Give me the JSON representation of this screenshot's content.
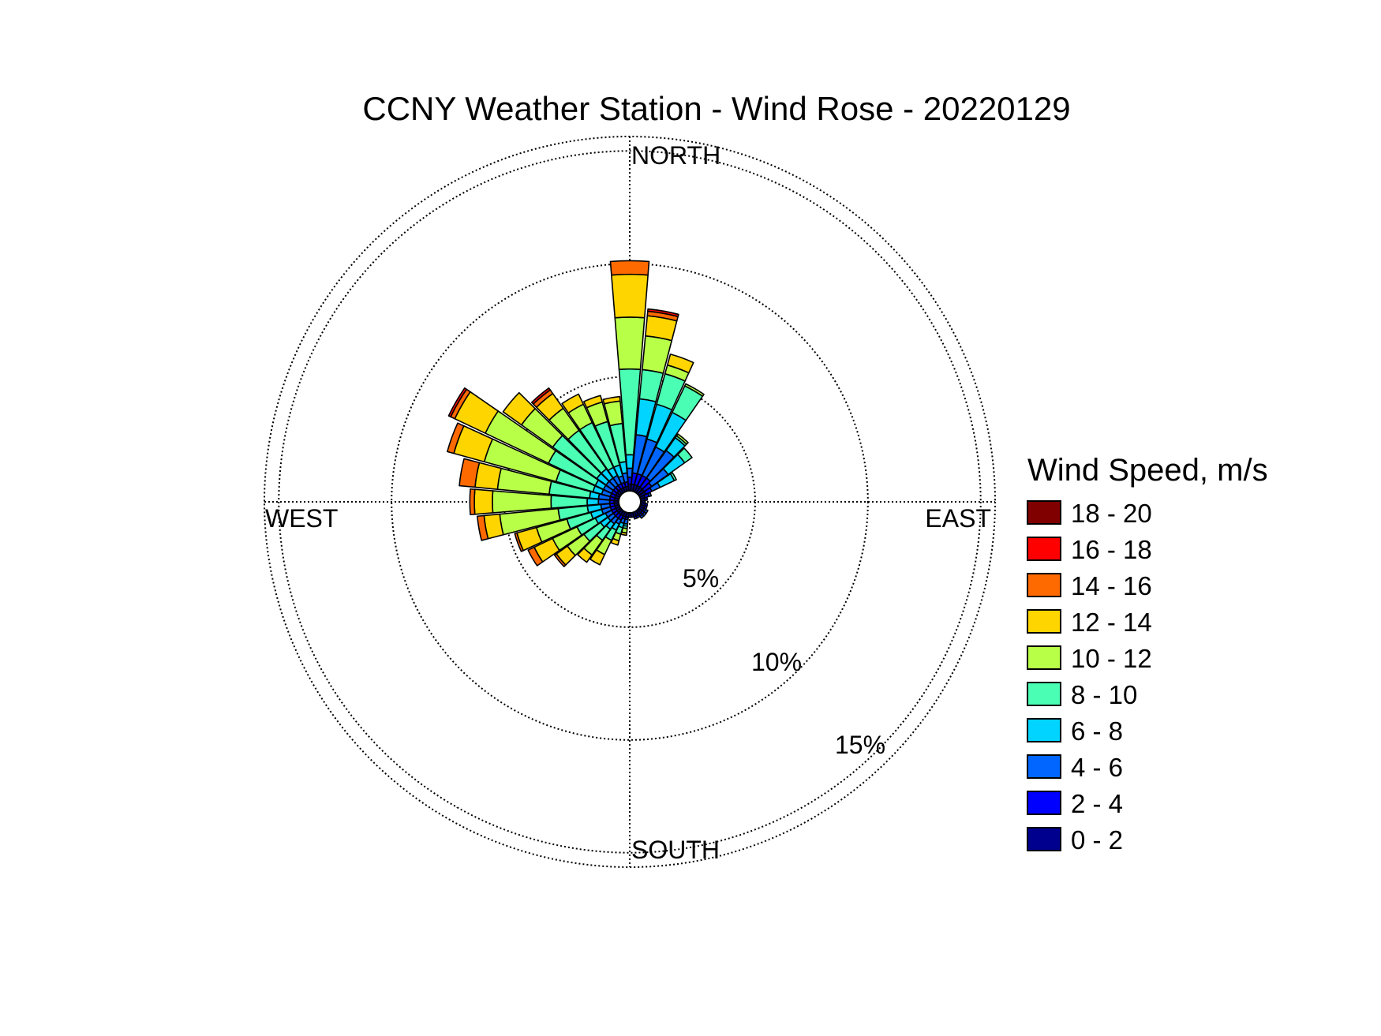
{
  "title": "CCNY Weather Station - Wind Rose - 20220129",
  "directions": {
    "north": "NORTH",
    "south": "SOUTH",
    "east": "EAST",
    "west": "WEST"
  },
  "ring_labels": [
    "5%",
    "10%",
    "15%"
  ],
  "legend": {
    "title": "Wind Speed, m/s",
    "items": [
      {
        "label": "18 - 20",
        "color": "#800000"
      },
      {
        "label": "16 - 18",
        "color": "#ff0000"
      },
      {
        "label": "14 - 16",
        "color": "#ff6a00"
      },
      {
        "label": "12 - 14",
        "color": "#ffd500"
      },
      {
        "label": "10 - 12",
        "color": "#b8ff48"
      },
      {
        "label": "8 - 10",
        "color": "#4affb4"
      },
      {
        "label": "6 - 8",
        "color": "#00d4ff"
      },
      {
        "label": "4 - 6",
        "color": "#0066ff"
      },
      {
        "label": "2 - 4",
        "color": "#0000ff"
      },
      {
        "label": "0 - 2",
        "color": "#00008f"
      }
    ]
  },
  "chart_data": {
    "type": "wind_rose",
    "unit": "%",
    "radial_ticks": [
      5,
      10,
      15
    ],
    "radial_max": 15.5,
    "speed_bins": [
      "0 - 2",
      "2 - 4",
      "4 - 6",
      "6 - 8",
      "8 - 10",
      "10 - 12",
      "12 - 14",
      "14 - 16",
      "16 - 18",
      "18 - 20"
    ],
    "directions_deg": [
      0,
      10,
      20,
      30,
      40,
      50,
      60,
      70,
      80,
      90,
      100,
      110,
      120,
      130,
      140,
      150,
      160,
      170,
      180,
      190,
      200,
      210,
      220,
      230,
      240,
      250,
      260,
      270,
      280,
      290,
      300,
      310,
      320,
      330,
      340,
      350
    ],
    "cumulative_percent": [
      [
        0.3,
        0.6,
        1.0,
        1.6,
        5.4,
        7.7,
        9.6,
        10.2,
        10.2,
        10.2
      ],
      [
        0.3,
        0.8,
        2.5,
        4.1,
        5.4,
        6.9,
        7.8,
        8.0,
        8.1,
        8.1
      ],
      [
        0.3,
        0.8,
        2.4,
        4.0,
        5.4,
        5.8,
        6.3,
        6.3,
        6.3,
        6.3
      ],
      [
        0.3,
        0.8,
        2.2,
        3.9,
        5.2,
        5.3,
        5.3,
        5.3,
        5.3,
        5.3
      ],
      [
        0.3,
        0.8,
        2.3,
        3.0,
        3.1,
        3.2,
        3.2,
        3.2,
        3.2,
        3.2
      ],
      [
        0.3,
        0.7,
        1.6,
        2.5,
        2.9,
        2.9,
        2.9,
        2.9,
        2.9,
        2.9
      ],
      [
        0.3,
        0.6,
        1.0,
        1.7,
        1.8,
        1.8,
        1.8,
        1.8,
        1.8,
        1.8
      ],
      [
        0.2,
        0.4,
        0.5,
        0.5,
        0.5,
        0.5,
        0.5,
        0.5,
        0.5,
        0.5
      ],
      [
        0.2,
        0.3,
        0.3,
        0.3,
        0.3,
        0.3,
        0.3,
        0.3,
        0.3,
        0.3
      ],
      [
        0.2,
        0.2,
        0.2,
        0.2,
        0.2,
        0.2,
        0.2,
        0.2,
        0.2,
        0.2
      ],
      [
        0.2,
        0.3,
        0.3,
        0.3,
        0.3,
        0.3,
        0.3,
        0.3,
        0.3,
        0.3
      ],
      [
        0.2,
        0.3,
        0.3,
        0.3,
        0.3,
        0.3,
        0.3,
        0.3,
        0.3,
        0.3
      ],
      [
        0.2,
        0.3,
        0.4,
        0.4,
        0.4,
        0.4,
        0.4,
        0.4,
        0.4,
        0.4
      ],
      [
        0.2,
        0.3,
        0.4,
        0.4,
        0.4,
        0.4,
        0.4,
        0.4,
        0.4,
        0.4
      ],
      [
        0.2,
        0.3,
        0.4,
        0.4,
        0.4,
        0.4,
        0.4,
        0.4,
        0.4,
        0.4
      ],
      [
        0.2,
        0.3,
        0.3,
        0.3,
        0.3,
        0.3,
        0.3,
        0.3,
        0.3,
        0.3
      ],
      [
        0.2,
        0.3,
        0.3,
        0.3,
        0.3,
        0.3,
        0.3,
        0.3,
        0.3,
        0.3
      ],
      [
        0.2,
        0.2,
        0.2,
        0.2,
        0.2,
        0.2,
        0.2,
        0.2,
        0.2,
        0.2
      ],
      [
        0.2,
        0.2,
        0.2,
        0.2,
        0.2,
        0.2,
        0.2,
        0.2,
        0.2,
        0.2
      ],
      [
        0.2,
        0.3,
        0.5,
        0.6,
        0.7,
        0.9,
        1.0,
        1.0,
        1.0,
        1.0
      ],
      [
        0.2,
        0.3,
        0.5,
        0.7,
        1.0,
        1.3,
        1.5,
        1.5,
        1.5,
        1.5
      ],
      [
        0.2,
        0.4,
        0.6,
        0.9,
        1.4,
        2.1,
        2.6,
        2.6,
        2.6,
        2.6
      ],
      [
        0.2,
        0.4,
        0.7,
        1.0,
        1.6,
        2.4,
        2.8,
        2.8,
        2.8,
        2.8
      ],
      [
        0.2,
        0.4,
        0.7,
        1.1,
        2.0,
        2.9,
        3.5,
        3.6,
        3.6,
        3.6
      ],
      [
        0.2,
        0.4,
        0.7,
        1.2,
        2.1,
        3.3,
        4.2,
        4.5,
        4.5,
        4.5
      ],
      [
        0.2,
        0.4,
        0.8,
        1.3,
        2.4,
        3.8,
        4.7,
        4.8,
        4.8,
        4.8
      ],
      [
        0.2,
        0.4,
        0.8,
        1.4,
        2.7,
        5.3,
        6.0,
        6.3,
        6.3,
        6.3
      ],
      [
        0.2,
        0.4,
        0.9,
        1.4,
        3.0,
        5.6,
        6.4,
        6.6,
        6.6,
        6.6
      ],
      [
        0.2,
        0.4,
        0.9,
        1.3,
        3.1,
        5.4,
        6.4,
        7.1,
        7.1,
        7.1
      ],
      [
        0.2,
        0.4,
        0.8,
        1.2,
        2.9,
        6.2,
        7.6,
        7.9,
        7.9,
        7.9
      ],
      [
        0.2,
        0.4,
        0.8,
        1.2,
        3.5,
        6.6,
        8.1,
        8.3,
        8.4,
        8.4
      ],
      [
        0.2,
        0.4,
        0.8,
        1.3,
        3.7,
        5.4,
        6.4,
        6.4,
        6.4,
        6.4
      ],
      [
        0.2,
        0.4,
        0.8,
        1.3,
        3.4,
        4.6,
        5.4,
        5.6,
        5.7,
        5.7
      ],
      [
        0.2,
        0.4,
        0.8,
        1.2,
        3.4,
        4.3,
        4.8,
        4.8,
        4.8,
        4.8
      ],
      [
        0.2,
        0.4,
        0.7,
        1.2,
        3.2,
        4.1,
        4.4,
        4.4,
        4.4,
        4.4
      ],
      [
        0.2,
        0.4,
        0.8,
        1.3,
        3.0,
        4.0,
        4.2,
        4.2,
        4.2,
        4.2
      ]
    ],
    "grid": true,
    "legend_position": "right"
  }
}
